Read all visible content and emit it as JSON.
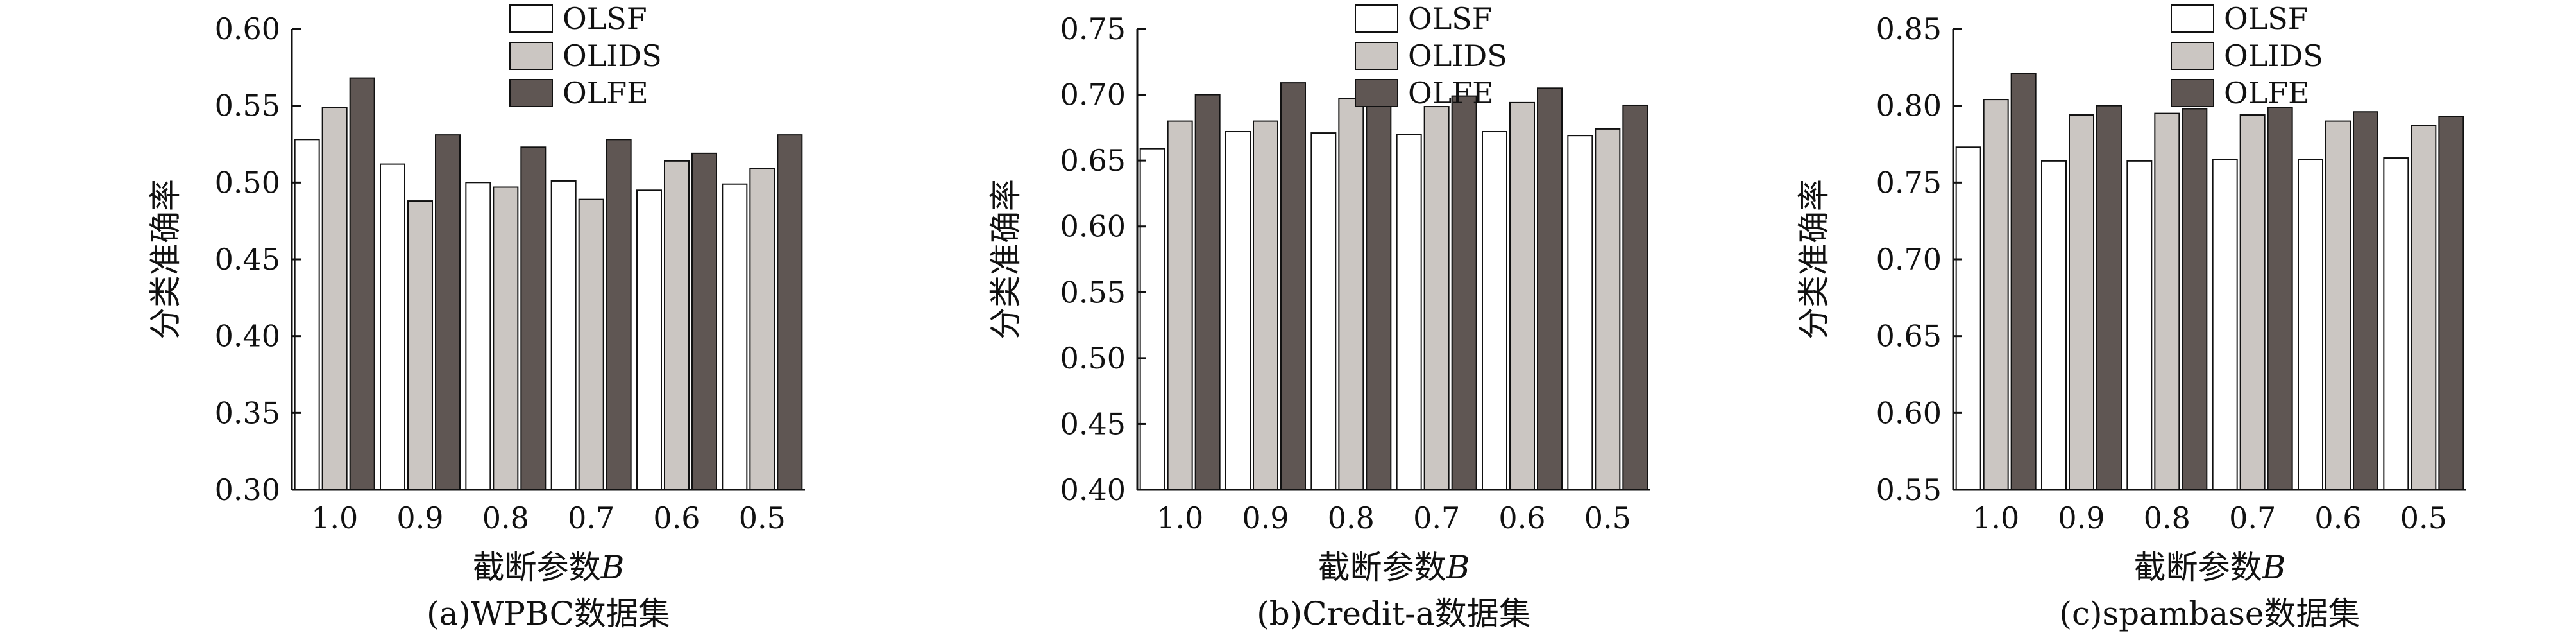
{
  "colors": {
    "OLSF": "#ffffff",
    "OLIDS": "#cbc6c2",
    "OLFE": "#5f5653",
    "stroke": "#111111"
  },
  "chart_data": [
    {
      "type": "bar",
      "caption": "(a)WPBC数据集",
      "xlabel_main": "截断参数",
      "xlabel_var": "B",
      "ylabel": "分类准确率",
      "categories": [
        "1.0",
        "0.9",
        "0.8",
        "0.7",
        "0.6",
        "0.5"
      ],
      "ylim": [
        0.3,
        0.6
      ],
      "yticks": [
        "0.30",
        "0.35",
        "0.40",
        "0.45",
        "0.50",
        "0.55",
        "0.60"
      ],
      "legend_position": "top-right",
      "series": [
        {
          "name": "OLSF",
          "values": [
            0.528,
            0.512,
            0.5,
            0.501,
            0.495,
            0.499
          ]
        },
        {
          "name": "OLIDS",
          "values": [
            0.549,
            0.488,
            0.497,
            0.489,
            0.514,
            0.509
          ]
        },
        {
          "name": "OLFE",
          "values": [
            0.568,
            0.531,
            0.523,
            0.528,
            0.519,
            0.531
          ]
        }
      ]
    },
    {
      "type": "bar",
      "caption": "(b)Credit-a数据集",
      "xlabel_main": "截断参数",
      "xlabel_var": "B",
      "ylabel": "分类准确率",
      "categories": [
        "1.0",
        "0.9",
        "0.8",
        "0.7",
        "0.6",
        "0.5"
      ],
      "ylim": [
        0.4,
        0.75
      ],
      "yticks": [
        "0.40",
        "0.45",
        "0.50",
        "0.55",
        "0.60",
        "0.65",
        "0.70",
        "0.75"
      ],
      "legend_position": "top-right",
      "series": [
        {
          "name": "OLSF",
          "values": [
            0.659,
            0.672,
            0.671,
            0.67,
            0.672,
            0.669
          ]
        },
        {
          "name": "OLIDS",
          "values": [
            0.68,
            0.68,
            0.697,
            0.691,
            0.694,
            0.674
          ]
        },
        {
          "name": "OLFE",
          "values": [
            0.7,
            0.709,
            0.709,
            0.699,
            0.705,
            0.692
          ]
        }
      ]
    },
    {
      "type": "bar",
      "caption": "(c)spambase数据集",
      "xlabel_main": "截断参数",
      "xlabel_var": "B",
      "ylabel": "分类准确率",
      "categories": [
        "1.0",
        "0.9",
        "0.8",
        "0.7",
        "0.6",
        "0.5"
      ],
      "ylim": [
        0.55,
        0.85
      ],
      "yticks": [
        "0.55",
        "0.60",
        "0.65",
        "0.70",
        "0.75",
        "0.80",
        "0.85"
      ],
      "legend_position": "top-right",
      "series": [
        {
          "name": "OLSF",
          "values": [
            0.773,
            0.764,
            0.764,
            0.765,
            0.765,
            0.766
          ]
        },
        {
          "name": "OLIDS",
          "values": [
            0.804,
            0.794,
            0.795,
            0.794,
            0.79,
            0.787
          ]
        },
        {
          "name": "OLFE",
          "values": [
            0.821,
            0.8,
            0.798,
            0.799,
            0.796,
            0.793
          ]
        }
      ]
    }
  ]
}
